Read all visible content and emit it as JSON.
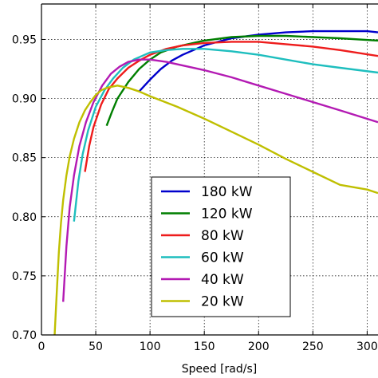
{
  "chart_data": {
    "type": "line",
    "title": "",
    "xlabel": "Speed [rad/s]",
    "ylabel": "",
    "xlim": [
      0,
      310
    ],
    "ylim": [
      0.7,
      0.98
    ],
    "grid": true,
    "legend_position": "lower-center",
    "x_ticks": [
      {
        "value": 0,
        "label": "0"
      },
      {
        "value": 50,
        "label": "50"
      },
      {
        "value": 100,
        "label": "100"
      },
      {
        "value": 150,
        "label": "150"
      },
      {
        "value": 200,
        "label": "200"
      },
      {
        "value": 250,
        "label": "250"
      },
      {
        "value": 300,
        "label": "300"
      }
    ],
    "y_ticks": [
      {
        "value": 0.7,
        "label": "0.70"
      },
      {
        "value": 0.75,
        "label": "0.75"
      },
      {
        "value": 0.8,
        "label": "0.80"
      },
      {
        "value": 0.85,
        "label": "0.85"
      },
      {
        "value": 0.9,
        "label": "0.90"
      },
      {
        "value": 0.95,
        "label": "0.95"
      }
    ],
    "series": [
      {
        "name": "180 kW",
        "color": "#0000cc",
        "points": [
          [
            90,
            0.906
          ],
          [
            100,
            0.916
          ],
          [
            110,
            0.925
          ],
          [
            120,
            0.932
          ],
          [
            130,
            0.937
          ],
          [
            140,
            0.941
          ],
          [
            150,
            0.945
          ],
          [
            175,
            0.951
          ],
          [
            200,
            0.954
          ],
          [
            225,
            0.956
          ],
          [
            250,
            0.957
          ],
          [
            262,
            0.957
          ],
          [
            280,
            0.957
          ],
          [
            300,
            0.957
          ],
          [
            310,
            0.956
          ]
        ]
      },
      {
        "name": "120 kW",
        "color": "#007f00",
        "points": [
          [
            60,
            0.877
          ],
          [
            65,
            0.889
          ],
          [
            70,
            0.9
          ],
          [
            80,
            0.914
          ],
          [
            90,
            0.925
          ],
          [
            100,
            0.933
          ],
          [
            110,
            0.939
          ],
          [
            125,
            0.944
          ],
          [
            150,
            0.949
          ],
          [
            175,
            0.952
          ],
          [
            200,
            0.953
          ],
          [
            225,
            0.953
          ],
          [
            250,
            0.952
          ],
          [
            275,
            0.951
          ],
          [
            310,
            0.949
          ]
        ]
      },
      {
        "name": "80 kW",
        "color": "#ee1c1c",
        "points": [
          [
            40,
            0.838
          ],
          [
            44,
            0.86
          ],
          [
            48,
            0.876
          ],
          [
            55,
            0.895
          ],
          [
            62,
            0.908
          ],
          [
            70,
            0.917
          ],
          [
            80,
            0.926
          ],
          [
            90,
            0.932
          ],
          [
            100,
            0.937
          ],
          [
            115,
            0.942
          ],
          [
            130,
            0.945
          ],
          [
            150,
            0.947
          ],
          [
            175,
            0.948
          ],
          [
            200,
            0.948
          ],
          [
            225,
            0.946
          ],
          [
            250,
            0.944
          ],
          [
            275,
            0.941
          ],
          [
            310,
            0.936
          ]
        ]
      },
      {
        "name": "60 kW",
        "color": "#1ebebe",
        "points": [
          [
            30,
            0.796
          ],
          [
            34,
            0.83
          ],
          [
            38,
            0.853
          ],
          [
            43,
            0.873
          ],
          [
            50,
            0.893
          ],
          [
            58,
            0.907
          ],
          [
            66,
            0.917
          ],
          [
            75,
            0.926
          ],
          [
            85,
            0.933
          ],
          [
            100,
            0.939
          ],
          [
            115,
            0.941
          ],
          [
            130,
            0.942
          ],
          [
            150,
            0.942
          ],
          [
            175,
            0.94
          ],
          [
            200,
            0.937
          ],
          [
            225,
            0.933
          ],
          [
            250,
            0.929
          ],
          [
            275,
            0.926
          ],
          [
            310,
            0.922
          ]
        ]
      },
      {
        "name": "40 kW",
        "color": "#b31ab3",
        "points": [
          [
            20,
            0.728
          ],
          [
            23,
            0.775
          ],
          [
            26,
            0.808
          ],
          [
            30,
            0.835
          ],
          [
            35,
            0.86
          ],
          [
            41,
            0.88
          ],
          [
            48,
            0.897
          ],
          [
            56,
            0.911
          ],
          [
            64,
            0.921
          ],
          [
            72,
            0.927
          ],
          [
            80,
            0.931
          ],
          [
            90,
            0.933
          ],
          [
            100,
            0.933
          ],
          [
            115,
            0.931
          ],
          [
            130,
            0.928
          ],
          [
            150,
            0.924
          ],
          [
            175,
            0.918
          ],
          [
            200,
            0.911
          ],
          [
            225,
            0.904
          ],
          [
            250,
            0.897
          ],
          [
            275,
            0.89
          ],
          [
            310,
            0.88
          ]
        ]
      },
      {
        "name": "20 kW",
        "color": "#bfbf00",
        "points": [
          [
            12,
            0.697
          ],
          [
            14,
            0.735
          ],
          [
            16,
            0.77
          ],
          [
            18,
            0.795
          ],
          [
            20,
            0.814
          ],
          [
            23,
            0.835
          ],
          [
            26,
            0.851
          ],
          [
            30,
            0.866
          ],
          [
            35,
            0.88
          ],
          [
            40,
            0.89
          ],
          [
            45,
            0.897
          ],
          [
            50,
            0.903
          ],
          [
            55,
            0.907
          ],
          [
            60,
            0.909
          ],
          [
            65,
            0.91
          ],
          [
            70,
            0.911
          ],
          [
            80,
            0.909
          ],
          [
            90,
            0.906
          ],
          [
            100,
            0.902
          ],
          [
            125,
            0.893
          ],
          [
            150,
            0.883
          ],
          [
            175,
            0.872
          ],
          [
            200,
            0.861
          ],
          [
            225,
            0.849
          ],
          [
            250,
            0.838
          ],
          [
            275,
            0.827
          ],
          [
            300,
            0.823
          ],
          [
            310,
            0.82
          ]
        ]
      }
    ]
  }
}
